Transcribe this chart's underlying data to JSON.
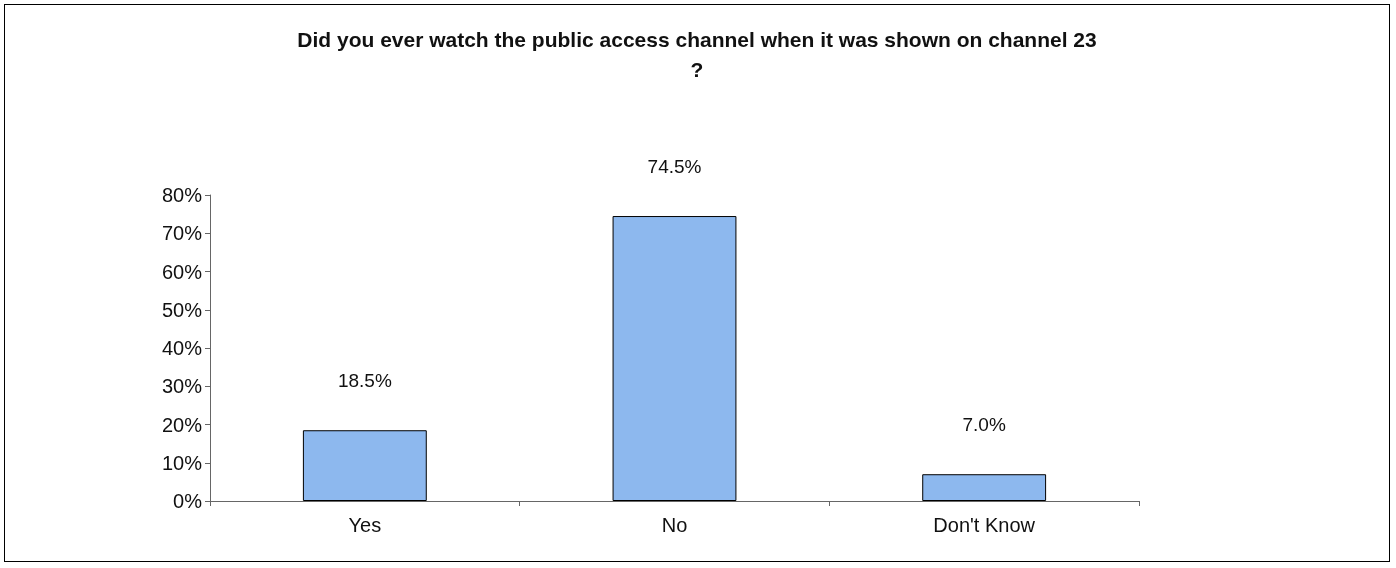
{
  "chart_data": {
    "type": "bar",
    "title": "Did you ever watch the public access channel when it was shown on channel 23?",
    "categories": [
      "Yes",
      "No",
      "Don't Know"
    ],
    "values": [
      18.5,
      74.5,
      7.0
    ],
    "value_labels": [
      "18.5%",
      "74.5%",
      "7.0%"
    ],
    "color": "#8db8ee",
    "ylim": [
      0,
      80
    ],
    "yticks": [
      {
        "value": 0,
        "label": "0%"
      },
      {
        "value": 10,
        "label": "10%"
      },
      {
        "value": 20,
        "label": "20%"
      },
      {
        "value": 30,
        "label": "30%"
      },
      {
        "value": 40,
        "label": "40%"
      },
      {
        "value": 50,
        "label": "50%"
      },
      {
        "value": 60,
        "label": "60%"
      },
      {
        "value": 70,
        "label": "70%"
      },
      {
        "value": 80,
        "label": "80%"
      }
    ],
    "grid": false
  }
}
